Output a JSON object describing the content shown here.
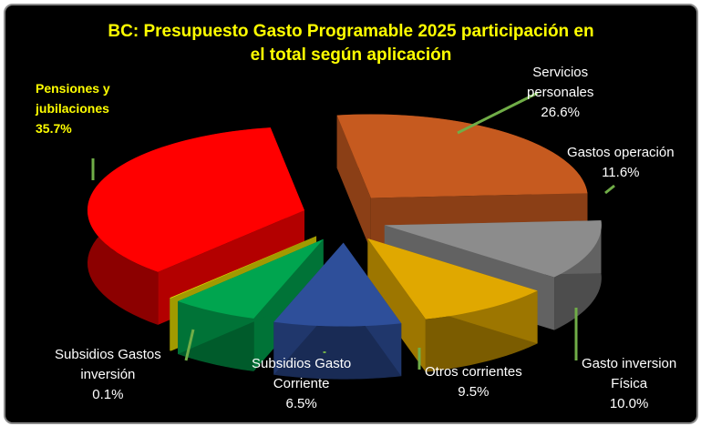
{
  "chart_data": {
    "type": "pie",
    "title": "BC: Presupuesto Gasto Programable 2025 participación en el total según aplicación",
    "title_lines": [
      "BC: Presupuesto Gasto Programable 2025 participación en",
      "el total según aplicación"
    ],
    "slices": [
      {
        "id": "servicios",
        "label_lines": [
          "Servicios",
          "personales"
        ],
        "pct_text": "26.6%",
        "value": 26.6,
        "color": "#c65a1f"
      },
      {
        "id": "gastos-op",
        "label_lines": [
          "Gastos operación"
        ],
        "pct_text": "11.6%",
        "value": 11.6,
        "color": "#8c8c8c"
      },
      {
        "id": "inversion-fisica",
        "label_lines": [
          "Gasto inversion",
          "Física"
        ],
        "pct_text": "10.0%",
        "value": 10.0,
        "color": "#e0a800"
      },
      {
        "id": "otros",
        "label_lines": [
          "Otros corrientes"
        ],
        "pct_text": "9.5%",
        "value": 9.5,
        "color": "#2e4f9a"
      },
      {
        "id": "subsidios-corriente",
        "label_lines": [
          "Subsidios Gasto",
          "Corriente"
        ],
        "pct_text": "6.5%",
        "value": 6.5,
        "color": "#00a54f"
      },
      {
        "id": "subsidios-inversion",
        "label_lines": [
          "Subsidios Gastos",
          "inversión"
        ],
        "pct_text": "0.1%",
        "value": 0.1,
        "color": "#e6dc00"
      },
      {
        "id": "pensiones",
        "label_lines": [
          "Pensiones y",
          "jubilaciones"
        ],
        "pct_text": "35.7%",
        "value": 35.7,
        "color": "#ff0000"
      }
    ],
    "leader_color": "#70ad47",
    "background": "#000000",
    "title_color": "#ffff00"
  }
}
